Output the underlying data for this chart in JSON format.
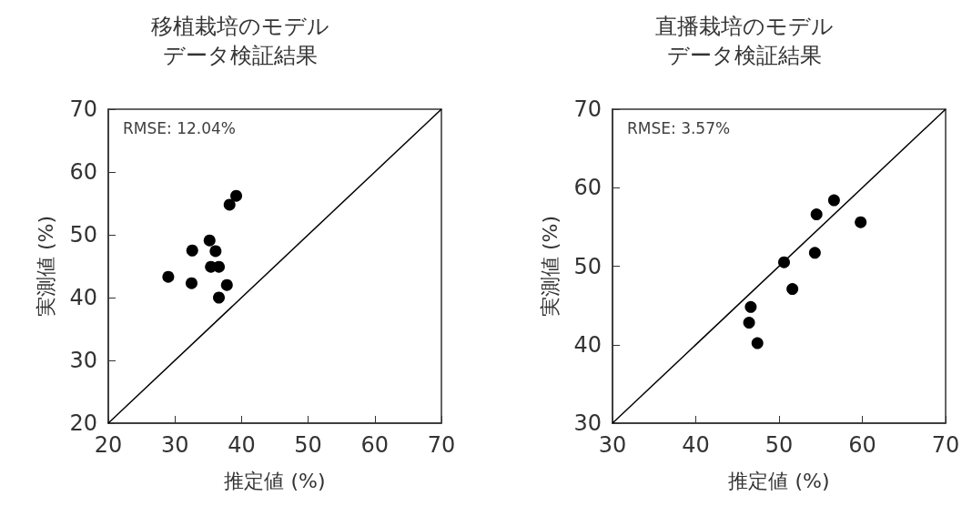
{
  "chart_data": [
    {
      "type": "scatter",
      "title": "移植栽培のモデルデータ検証結果",
      "xlabel": "推定値 (%)",
      "ylabel": "実測値 (%)",
      "xlim": [
        20,
        70
      ],
      "ylim": [
        20,
        70
      ],
      "xticks": [
        20,
        30,
        40,
        50,
        60,
        70
      ],
      "yticks": [
        20,
        30,
        40,
        50,
        60,
        70
      ],
      "grid": false,
      "annotations": [
        "RMSE: 12.04%"
      ],
      "series": [
        {
          "color": "#000000",
          "marker": "circle",
          "x": [
            29.0,
            32.5,
            32.6,
            35.2,
            36.1,
            35.4,
            36.6,
            37.8,
            36.6,
            38.2,
            39.2
          ],
          "values": [
            43.3,
            42.3,
            47.5,
            49.1,
            47.4,
            44.9,
            44.9,
            42.0,
            40.0,
            54.8,
            56.2
          ]
        },
        {
          "type": "line",
          "color": "#000000",
          "line_style": "solid",
          "x": [
            20,
            70
          ],
          "values": [
            20,
            70
          ]
        }
      ]
    },
    {
      "type": "scatter",
      "title": "直播栽培のモデルデータ検証結果",
      "xlabel": "推定値 (%)",
      "ylabel": "実測値 (%)",
      "xlim": [
        30,
        70
      ],
      "ylim": [
        30,
        70
      ],
      "xticks": [
        30,
        40,
        50,
        60,
        70
      ],
      "yticks": [
        30,
        40,
        50,
        60,
        70
      ],
      "grid": false,
      "annotations": [
        "RMSE: 3.57%"
      ],
      "series": [
        {
          "color": "#000000",
          "marker": "circle",
          "x": [
            46.6,
            46.4,
            47.4,
            50.6,
            51.6,
            54.3,
            54.5,
            56.6,
            59.8
          ],
          "values": [
            44.8,
            42.8,
            40.2,
            50.5,
            47.1,
            51.7,
            56.6,
            58.4,
            55.6
          ]
        },
        {
          "type": "line",
          "color": "#000000",
          "line_style": "solid",
          "x": [
            30,
            70
          ],
          "values": [
            30,
            70
          ]
        }
      ]
    }
  ]
}
